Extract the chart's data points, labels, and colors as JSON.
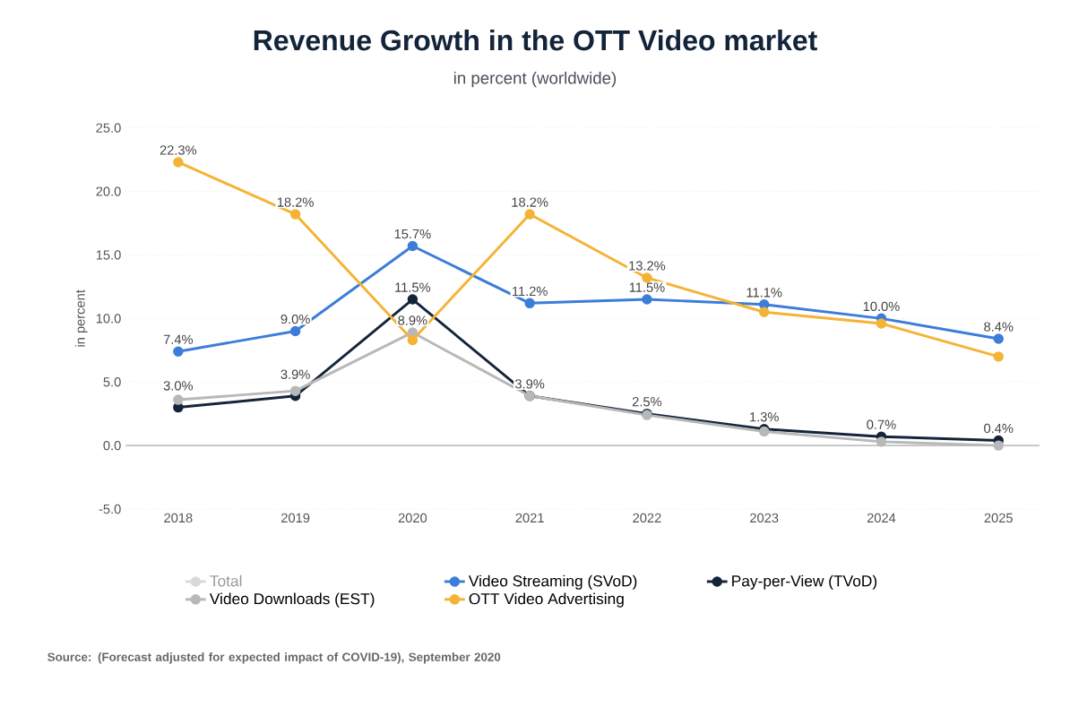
{
  "chart_data": {
    "type": "line",
    "title": "Revenue Growth in the OTT Video market",
    "subtitle": "in percent (worldwide)",
    "ylabel": "in percent",
    "categories": [
      "2018",
      "2019",
      "2020",
      "2021",
      "2022",
      "2023",
      "2024",
      "2025"
    ],
    "series": [
      {
        "name": "Total",
        "color": "#d9d9d9",
        "values": [
          null,
          null,
          null,
          null,
          null,
          null,
          null,
          null
        ]
      },
      {
        "name": "Video Streaming (SVoD)",
        "color": "#3b7dd8",
        "values": [
          7.4,
          9.0,
          15.7,
          11.2,
          11.5,
          11.1,
          10.0,
          8.4
        ],
        "value_labels": [
          "7.4%",
          "9.0%",
          "15.7%",
          "11.2%",
          "11.5%",
          "11.1%",
          "10.0%",
          "8.4%"
        ]
      },
      {
        "name": "Pay-per-View (TVoD)",
        "color": "#14253a",
        "values": [
          3.0,
          3.9,
          11.5,
          3.9,
          2.5,
          1.3,
          0.7,
          0.4
        ],
        "value_labels": [
          "3.0%",
          "3.9%",
          "11.5%",
          "3.9%",
          "2.5%",
          "1.3%",
          "0.7%",
          "0.4%"
        ]
      },
      {
        "name": "Video Downloads (EST)",
        "color": "#b8b8b8",
        "values": [
          3.6,
          4.3,
          8.9,
          3.9,
          2.4,
          1.1,
          0.3,
          0.0
        ],
        "value_labels": [
          null,
          null,
          "8.9%",
          null,
          null,
          null,
          null,
          null
        ]
      },
      {
        "name": "OTT Video Advertising",
        "color": "#f5b335",
        "values": [
          22.3,
          18.2,
          8.3,
          18.2,
          13.2,
          10.5,
          9.6,
          7.0
        ],
        "value_labels": [
          "22.3%",
          "18.2%",
          null,
          "18.2%",
          "13.2%",
          null,
          null,
          null
        ]
      }
    ],
    "ylim": [
      -5,
      25
    ],
    "yticks": [
      {
        "value": -5,
        "label": "-5.0"
      },
      {
        "value": 0,
        "label": "0.0"
      },
      {
        "value": 5,
        "label": "5.0"
      },
      {
        "value": 10,
        "label": "10.0"
      },
      {
        "value": 15,
        "label": "15.0"
      },
      {
        "value": 20,
        "label": "20.0"
      },
      {
        "value": 25,
        "label": "25.0"
      }
    ],
    "ref_lines": [
      {
        "axis": "y",
        "value": 0,
        "color": "#aaaaaa"
      }
    ],
    "grid": "y",
    "legend": "bottom",
    "marker": "circle",
    "line_style": "solid",
    "annotations": [
      "Source: (Forecast adjusted for expected impact of COVID-19), September 2020"
    ]
  }
}
